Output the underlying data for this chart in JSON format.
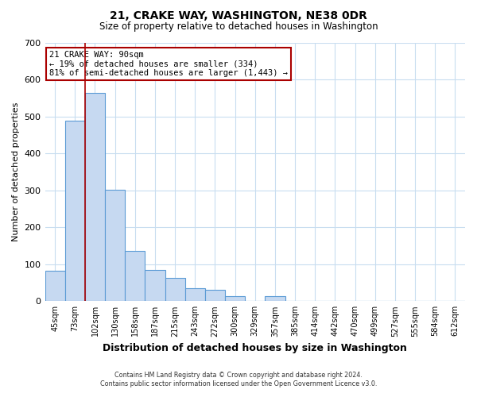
{
  "title": "21, CRAKE WAY, WASHINGTON, NE38 0DR",
  "subtitle": "Size of property relative to detached houses in Washington",
  "xlabel": "Distribution of detached houses by size in Washington",
  "ylabel": "Number of detached properties",
  "bar_labels": [
    "45sqm",
    "73sqm",
    "102sqm",
    "130sqm",
    "158sqm",
    "187sqm",
    "215sqm",
    "243sqm",
    "272sqm",
    "300sqm",
    "329sqm",
    "357sqm",
    "385sqm",
    "414sqm",
    "442sqm",
    "470sqm",
    "499sqm",
    "527sqm",
    "555sqm",
    "584sqm",
    "612sqm"
  ],
  "bar_values": [
    83,
    490,
    565,
    302,
    137,
    85,
    62,
    35,
    30,
    13,
    0,
    13,
    0,
    0,
    0,
    0,
    0,
    0,
    0,
    0,
    0
  ],
  "bar_color": "#c6d9f1",
  "bar_edge_color": "#5b9bd5",
  "ylim": [
    0,
    700
  ],
  "yticks": [
    0,
    100,
    200,
    300,
    400,
    500,
    600,
    700
  ],
  "property_line_color": "#aa0000",
  "annotation_title": "21 CRAKE WAY: 90sqm",
  "annotation_line1": "← 19% of detached houses are smaller (334)",
  "annotation_line2": "81% of semi-detached houses are larger (1,443) →",
  "annotation_box_color": "#ffffff",
  "annotation_box_edge": "#aa0000",
  "footnote1": "Contains HM Land Registry data © Crown copyright and database right 2024.",
  "footnote2": "Contains public sector information licensed under the Open Government Licence v3.0.",
  "background_color": "#ffffff",
  "grid_color": "#c8ddf0"
}
